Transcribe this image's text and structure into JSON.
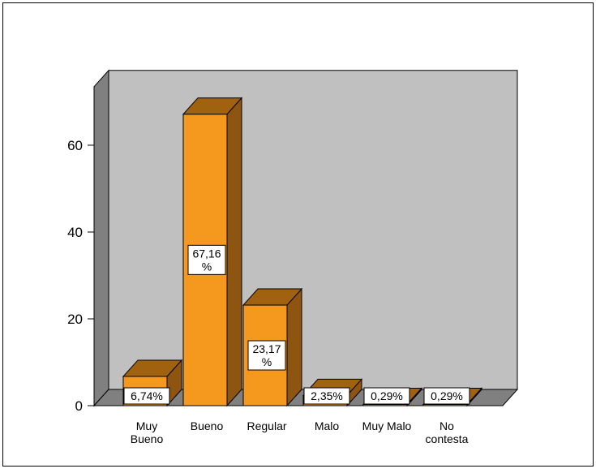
{
  "chart_data": {
    "type": "bar",
    "title": "",
    "xlabel": "",
    "ylabel": "",
    "categories": [
      [
        "Muy",
        "Bueno"
      ],
      [
        "Bueno"
      ],
      [
        "Regular"
      ],
      [
        "Malo"
      ],
      [
        "Muy Malo"
      ],
      [
        "No",
        "contesta"
      ]
    ],
    "values": [
      6.74,
      67.16,
      23.17,
      2.35,
      0.29,
      0.29
    ],
    "data_labels": [
      [
        "6,74%"
      ],
      [
        "67,16",
        "%"
      ],
      [
        "23,17",
        "%"
      ],
      [
        "2,35%"
      ],
      [
        "0,29%"
      ],
      [
        "0,29%"
      ]
    ],
    "ylim": [
      0,
      70
    ],
    "yticks": [
      "0",
      "20",
      "40",
      "60"
    ],
    "ytick_values": [
      0,
      20,
      40,
      60
    ],
    "grid": false,
    "legend": "none",
    "colors": {
      "bar_front": "#f5991e",
      "bar_top": "#a0620f",
      "bar_side": "#8e5510",
      "back_wall": "#c0c0c0",
      "side_wall": "#808080",
      "floor": "#808080"
    }
  }
}
